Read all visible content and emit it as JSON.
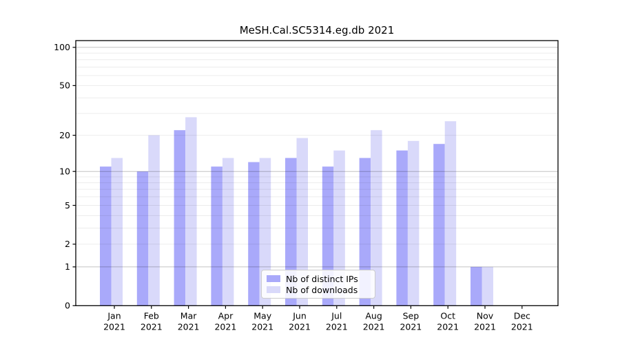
{
  "chart_data": {
    "type": "bar",
    "title": "MeSH.Cal.SC5314.eg.db 2021",
    "categories": [
      "Jan",
      "Feb",
      "Mar",
      "Apr",
      "May",
      "Jun",
      "Jul",
      "Aug",
      "Sep",
      "Oct",
      "Nov",
      "Dec"
    ],
    "x_tick_year": "2021",
    "series": [
      {
        "name": "Nb of distinct IPs",
        "color": "#a9a9fa",
        "values": [
          11,
          10,
          22,
          11,
          12,
          13,
          11,
          13,
          15,
          17,
          1,
          0
        ]
      },
      {
        "name": "Nb of downloads",
        "color": "#d9d9fa",
        "values": [
          13,
          20,
          28,
          13,
          13,
          19,
          15,
          22,
          18,
          26,
          1,
          0
        ]
      }
    ],
    "xlabel": "",
    "ylabel": "",
    "yscale": "log1p",
    "ylim": [
      0,
      113
    ],
    "ytick_labels": [
      100,
      50,
      20,
      10,
      5,
      2,
      1,
      0
    ],
    "major_gridlines": [
      1,
      10,
      100
    ],
    "minor_gridlines": [
      2,
      3,
      4,
      5,
      6,
      7,
      8,
      9,
      20,
      30,
      40,
      50,
      60,
      70,
      80,
      90
    ],
    "grid": true,
    "legend_position": "lower-center"
  }
}
